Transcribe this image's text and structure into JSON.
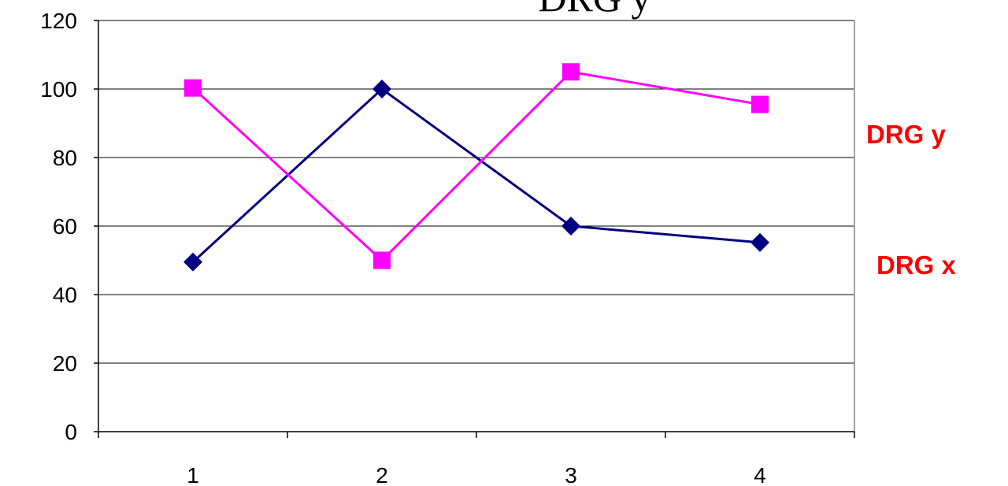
{
  "chart_data": {
    "type": "line",
    "title": "DRG y",
    "categories": [
      "1",
      "2",
      "3",
      "4"
    ],
    "ylim": [
      0,
      120
    ],
    "yticks": [
      0,
      20,
      40,
      60,
      80,
      100,
      120
    ],
    "grid": "horizontal",
    "series": [
      {
        "name": "DRG x",
        "values": [
          49.5,
          100,
          60,
          55.2
        ],
        "color": "#000080",
        "marker": "diamond"
      },
      {
        "name": "DRG y",
        "values": [
          100.3,
          50,
          105,
          95.5
        ],
        "color": "#FF00FF",
        "marker": "square"
      }
    ],
    "label_color": "#FF0000"
  }
}
